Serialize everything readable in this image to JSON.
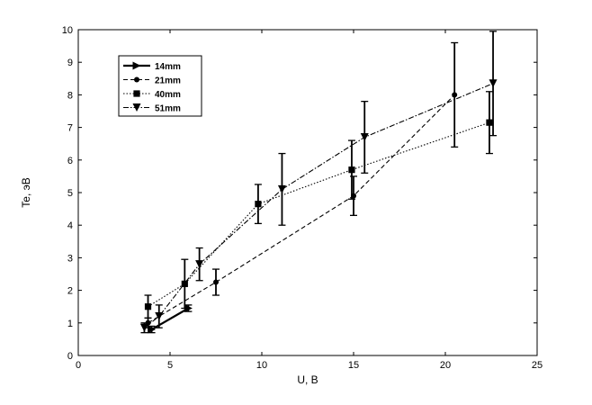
{
  "chart_data": {
    "type": "line",
    "title": "",
    "xlabel": "U, B",
    "ylabel": "Te, эВ",
    "xlim": [
      0,
      25
    ],
    "ylim": [
      0,
      10
    ],
    "xticks": [
      0,
      5,
      10,
      15,
      20,
      25
    ],
    "yticks": [
      0,
      1,
      2,
      3,
      4,
      5,
      6,
      7,
      8,
      9,
      10
    ],
    "grid": false,
    "legend_position": "top-left",
    "series": [
      {
        "name": "14mm",
        "marker": "triangle-right",
        "line_style": "solid",
        "x": [
          4.0,
          6.0
        ],
        "y": [
          0.8,
          1.45
        ],
        "err_low": [
          0.1,
          0.1
        ],
        "err_high": [
          0.1,
          0.1
        ]
      },
      {
        "name": "21mm",
        "marker": "circle",
        "line_style": "dashed",
        "x": [
          3.8,
          7.5,
          15.0,
          20.5
        ],
        "y": [
          1.0,
          2.25,
          4.9,
          8.0
        ],
        "err_low": [
          0.15,
          0.4,
          0.6,
          1.6
        ],
        "err_high": [
          0.15,
          0.4,
          0.6,
          1.6
        ]
      },
      {
        "name": "40mm",
        "marker": "square",
        "line_style": "dotted",
        "x": [
          3.8,
          5.8,
          9.8,
          14.9,
          22.4
        ],
        "y": [
          1.5,
          2.2,
          4.65,
          5.7,
          7.15
        ],
        "err_low": [
          0.35,
          0.75,
          0.6,
          0.9,
          0.95
        ],
        "err_high": [
          0.35,
          0.75,
          0.6,
          0.9,
          0.95
        ]
      },
      {
        "name": "51mm",
        "marker": "triangle-down",
        "line_style": "dashdot",
        "x": [
          3.6,
          4.4,
          6.6,
          11.1,
          15.6,
          22.6
        ],
        "y": [
          0.85,
          1.2,
          2.8,
          5.1,
          6.7,
          8.35
        ],
        "err_low": [
          0.15,
          0.35,
          0.5,
          1.1,
          1.1,
          1.6
        ],
        "err_high": [
          0.15,
          0.35,
          0.5,
          1.1,
          1.1,
          1.6
        ]
      }
    ]
  }
}
